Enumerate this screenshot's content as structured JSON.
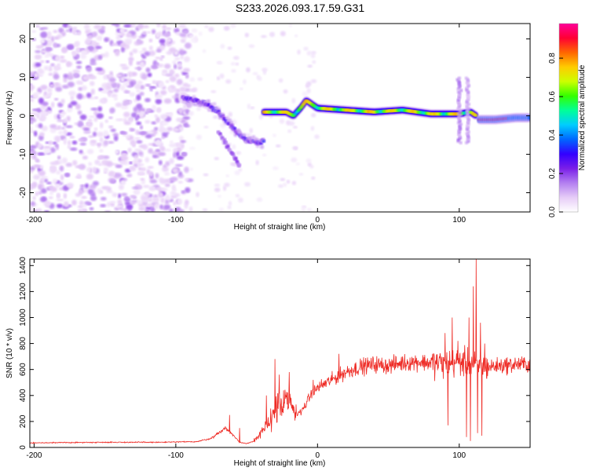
{
  "title": "S233.2026.093.17.59.G31",
  "colors": {
    "snr_line": "#ee2a24",
    "axis": "#000000",
    "background": "#ffffff"
  },
  "chart_data": [
    {
      "type": "heatmap",
      "name": "spectrogram",
      "xlabel": "Height of straight line (km)",
      "ylabel": "Frequency (Hz)",
      "xlim": [
        -203,
        150
      ],
      "ylim": [
        -25,
        24
      ],
      "xticks": [
        -200,
        -100,
        0,
        100
      ],
      "yticks": [
        -20,
        -10,
        0,
        10,
        20
      ],
      "grid": false,
      "colorbar": {
        "label": "Normalized spectral amplitude",
        "range": [
          0,
          0.98
        ],
        "ticks": [
          "0.0",
          "0.2",
          "0.4",
          "0.6",
          "0.8"
        ],
        "tick_values": [
          0,
          0.2,
          0.4,
          0.6,
          0.8
        ],
        "colormap": [
          "#ffffff",
          "#e6ccf7",
          "#b37ff0",
          "#7a1fe8",
          "#3300ff",
          "#0066ff",
          "#00ccff",
          "#00ff99",
          "#33ff00",
          "#ccff00",
          "#ffcc00",
          "#ff6600",
          "#ff0033",
          "#ff0099"
        ]
      },
      "features": {
        "noise_region_km": [
          -203,
          -90
        ],
        "descending_track": {
          "x_km": [
            -95,
            -85,
            -78,
            -70,
            -62,
            -55,
            -48,
            -42,
            -38
          ],
          "freq_hz": [
            4.5,
            4.0,
            3.0,
            1.0,
            -2.0,
            -5.0,
            -6.5,
            -7.0,
            -6.5
          ]
        },
        "descending_track_amplitude": 0.3,
        "side_streak": {
          "x_km": [
            -70,
            -65,
            -60,
            -55
          ],
          "freq_hz": [
            -4,
            -7,
            -10,
            -13
          ]
        },
        "side_streak_amplitude": 0.2,
        "main_band": {
          "x_km": [
            -38,
            -30,
            -22,
            -17,
            -12,
            -8,
            0,
            20,
            40,
            60,
            80,
            100,
            108,
            112
          ],
          "freq_hz": [
            1.0,
            1.0,
            1.0,
            0.0,
            2.0,
            4.0,
            2.0,
            1.5,
            1.0,
            1.5,
            0.5,
            0.5,
            1.0,
            0.0
          ]
        },
        "main_band_amplitude": 0.7,
        "high_band": {
          "x_km": [
            114,
            125,
            140,
            150
          ],
          "freq_hz": [
            -1.0,
            -1.0,
            -0.5,
            -0.5
          ]
        },
        "high_band_amplitude": 0.9,
        "vertical_streak_x_km": 100,
        "vertical_streak_freq_hz": [
          -7,
          10
        ]
      }
    },
    {
      "type": "line",
      "name": "snr",
      "xlabel": "Height of straight line (km)",
      "ylabel": "SNR (10 * v/v)",
      "xlim": [
        -203,
        150
      ],
      "ylim": [
        0,
        1450
      ],
      "xticks": [
        -200,
        -100,
        0,
        100
      ],
      "yticks": [
        0,
        200,
        400,
        600,
        800,
        1000,
        1200,
        1400
      ],
      "grid": false,
      "series": [
        {
          "name": "SNR",
          "control_x": [
            -203,
            -150,
            -110,
            -85,
            -75,
            -70,
            -65,
            -60,
            -55,
            -50,
            -45,
            -40,
            -35,
            -30,
            -25,
            -20,
            -15,
            -10,
            -5,
            0,
            10,
            20,
            30,
            40,
            50,
            60,
            70,
            80,
            90,
            100,
            110,
            120,
            130,
            140,
            150
          ],
          "control_y": [
            35,
            40,
            40,
            45,
            70,
            110,
            150,
            100,
            40,
            30,
            50,
            100,
            180,
            300,
            320,
            350,
            250,
            300,
            400,
            460,
            520,
            580,
            620,
            640,
            630,
            650,
            660,
            650,
            640,
            660,
            640,
            620,
            630,
            640,
            640
          ],
          "spikes": [
            {
              "x": -62,
              "y": 250
            },
            {
              "x": -55,
              "y": 150
            },
            {
              "x": -30,
              "y": 680
            },
            {
              "x": -27,
              "y": 560
            },
            {
              "x": -36,
              "y": 400
            },
            {
              "x": -20,
              "y": 580
            },
            {
              "x": -3,
              "y": 520
            },
            {
              "x": 15,
              "y": 720
            },
            {
              "x": 90,
              "y": 880
            },
            {
              "x": 95,
              "y": 1000
            },
            {
              "x": 99,
              "y": 820
            },
            {
              "x": 104,
              "y": 700
            },
            {
              "x": 107,
              "y": 1000
            },
            {
              "x": 110,
              "y": 1240
            },
            {
              "x": 112,
              "y": 1450
            },
            {
              "x": 115,
              "y": 960
            },
            {
              "x": 118,
              "y": 800
            },
            {
              "x": 86,
              "y": 700
            }
          ],
          "dips": [
            {
              "x": 92,
              "y": 170
            },
            {
              "x": 105,
              "y": 80
            },
            {
              "x": 108,
              "y": 50
            },
            {
              "x": 113,
              "y": 110
            },
            {
              "x": 116,
              "y": 90
            }
          ],
          "noise_fraction": 0.15
        }
      ]
    }
  ]
}
